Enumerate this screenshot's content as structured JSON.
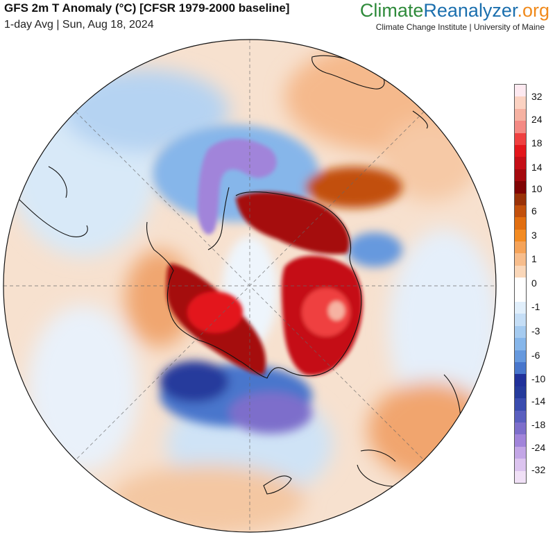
{
  "header": {
    "title": "GFS 2m T Anomaly (°C) [CFSR 1979-2000 baseline]",
    "subtitle": "1-day Avg | Sun, Aug 18, 2024"
  },
  "brand": {
    "part1": "Climate",
    "part2": "Reanalyzer",
    "part3": ".org",
    "sub": "Climate Change Institute | University of Maine"
  },
  "legend": {
    "colors": [
      "#fde9f0",
      "#fbd2c2",
      "#f6b2a2",
      "#f48a84",
      "#ef4040",
      "#e3161b",
      "#c50f17",
      "#a5090e",
      "#800404",
      "#9a3208",
      "#c2500c",
      "#e16e10",
      "#f38b22",
      "#f5a359",
      "#f7bd8c",
      "#fad7b9",
      "#ffffff",
      "#ffffff",
      "#e1effb",
      "#c5def6",
      "#a5cbf0",
      "#86b6ea",
      "#6699de",
      "#4876cc",
      "#20319a",
      "#253b9c",
      "#3a4caf",
      "#5a5fbf",
      "#7d6ecb",
      "#a184da",
      "#c3a6e6",
      "#dcc4ef",
      "#f0e0f6"
    ],
    "ticks": [
      {
        "label": "32",
        "pos": 0.032
      },
      {
        "label": "24",
        "pos": 0.088
      },
      {
        "label": "18",
        "pos": 0.148
      },
      {
        "label": "14",
        "pos": 0.208
      },
      {
        "label": "10",
        "pos": 0.262
      },
      {
        "label": "6",
        "pos": 0.318
      },
      {
        "label": "3",
        "pos": 0.378
      },
      {
        "label": "1",
        "pos": 0.438
      },
      {
        "label": "0",
        "pos": 0.498
      },
      {
        "label": "-1",
        "pos": 0.558
      },
      {
        "label": "-3",
        "pos": 0.618
      },
      {
        "label": "-6",
        "pos": 0.678
      },
      {
        "label": "-10",
        "pos": 0.738
      },
      {
        "label": "-14",
        "pos": 0.793
      },
      {
        "label": "-18",
        "pos": 0.852
      },
      {
        "label": "-24",
        "pos": 0.91
      },
      {
        "label": "-32",
        "pos": 0.966
      }
    ]
  }
}
